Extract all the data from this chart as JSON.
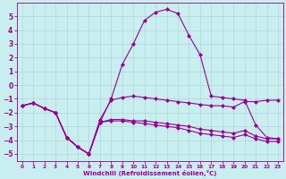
{
  "title": "",
  "xlabel": "Windchill (Refroidissement éolien,°C)",
  "ylabel": "",
  "background_color": "#c8eef0",
  "line_color": "#990099",
  "xlim": [
    -0.5,
    23.5
  ],
  "ylim": [
    -5.5,
    6.0
  ],
  "xticks": [
    0,
    1,
    2,
    3,
    4,
    5,
    6,
    7,
    8,
    9,
    10,
    11,
    12,
    13,
    14,
    15,
    16,
    17,
    18,
    19,
    20,
    21,
    22,
    23
  ],
  "yticks": [
    -5,
    -4,
    -3,
    -2,
    -1,
    0,
    1,
    2,
    3,
    4,
    5
  ],
  "grid_color": "#b0d8d8",
  "lines": [
    {
      "x": [
        0,
        1,
        2,
        3,
        4,
        5,
        6,
        7,
        8,
        9,
        10,
        11,
        12,
        13,
        14,
        15,
        16,
        17,
        18,
        19,
        20,
        21,
        22,
        23
      ],
      "y": [
        -1.5,
        -1.3,
        -1.7,
        -2.0,
        -3.8,
        -4.5,
        -5.0,
        -2.5,
        -1.1,
        -0.9,
        -0.8,
        -0.9,
        -1.0,
        -1.1,
        -1.2,
        -1.3,
        -1.4,
        -1.5,
        -1.5,
        -1.6,
        -1.2,
        -1.2,
        -1.1,
        -1.1
      ],
      "marker": "D",
      "markersize": 2
    },
    {
      "x": [
        0,
        1,
        2,
        3,
        4,
        5,
        6,
        7,
        8,
        9,
        10,
        11,
        12,
        13,
        14,
        15,
        16,
        17,
        18,
        19,
        20,
        21,
        22,
        23
      ],
      "y": [
        -1.5,
        -1.3,
        -1.7,
        -2.0,
        -3.8,
        -4.5,
        -5.0,
        -2.7,
        -2.5,
        -2.5,
        -2.6,
        -2.6,
        -2.7,
        -2.8,
        -2.9,
        -3.0,
        -3.2,
        -3.3,
        -3.4,
        -3.5,
        -3.3,
        -3.7,
        -3.9,
        -3.9
      ],
      "marker": "D",
      "markersize": 2
    },
    {
      "x": [
        0,
        1,
        2,
        3,
        4,
        5,
        6,
        7,
        8,
        9,
        10,
        11,
        12,
        13,
        14,
        15,
        16,
        17,
        18,
        19,
        20,
        21,
        22,
        23
      ],
      "y": [
        -1.5,
        -1.3,
        -1.7,
        -2.0,
        -3.8,
        -4.5,
        -5.0,
        -2.7,
        -2.6,
        -2.6,
        -2.7,
        -2.8,
        -2.9,
        -3.0,
        -3.1,
        -3.3,
        -3.5,
        -3.6,
        -3.7,
        -3.8,
        -3.6,
        -3.9,
        -4.1,
        -4.1
      ],
      "marker": "D",
      "markersize": 2
    },
    {
      "x": [
        0,
        1,
        2,
        3,
        4,
        5,
        6,
        7,
        8,
        9,
        10,
        11,
        12,
        13,
        14,
        15,
        16,
        17,
        18,
        19,
        20,
        21,
        22,
        23
      ],
      "y": [
        -1.5,
        -1.3,
        -1.7,
        -2.0,
        -3.8,
        -4.5,
        -5.0,
        -2.7,
        -1.0,
        1.5,
        3.0,
        4.7,
        5.3,
        5.5,
        5.2,
        3.6,
        2.2,
        -0.8,
        -0.9,
        -1.0,
        -1.1,
        -2.9,
        -3.8,
        -3.9
      ],
      "marker": "D",
      "markersize": 2
    }
  ]
}
